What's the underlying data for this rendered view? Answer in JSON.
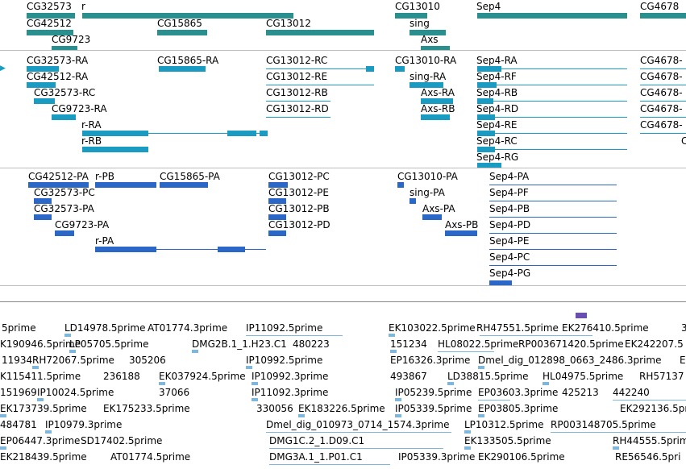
{
  "gene_track": {
    "labels": [
      "CG32573",
      "r",
      "CG13010",
      "Sep4",
      "CG4678",
      "CG42512",
      "CG15865",
      "CG13012",
      "sing",
      "CG9723",
      "Axs"
    ]
  },
  "transcript_track": {
    "labels": [
      "CG32573-RA",
      "CG15865-RA",
      "CG13012-RC",
      "CG13010-RA",
      "Sep4-RA",
      "CG4678-",
      "CG42512-RA",
      "CG13012-RE",
      "sing-RA",
      "Sep4-RF",
      "CG4678-",
      "CG32573-RC",
      "CG13012-RB",
      "Axs-RA",
      "Sep4-RB",
      "CG4678-",
      "CG9723-RA",
      "CG13012-RD",
      "Axs-RB",
      "Sep4-RD",
      "CG4678-",
      "r-RA",
      "Sep4-RE",
      "CG4678-",
      "r-RB",
      "Sep4-RC",
      "C",
      "Sep4-RG"
    ]
  },
  "protein_track": {
    "labels": [
      "CG42512-PA",
      "r-PB",
      "CG15865-PA",
      "CG13012-PC",
      "CG13010-PA",
      "Sep4-PA",
      "CG32573-PC",
      "CG13012-PE",
      "sing-PA",
      "Sep4-PF",
      "CG32573-PA",
      "CG13012-PB",
      "Axs-PA",
      "Sep4-PB",
      "CG9723-PA",
      "CG13012-PD",
      "Axs-PB",
      "Sep4-PD",
      "r-PA",
      "Sep4-PE",
      "Sep4-PC",
      "Sep4-PG"
    ]
  },
  "est_track": {
    "labels": [
      "5prime",
      "LD14978.5prime",
      "AT01774.3prime",
      "IP11092.5prime",
      "EK103022.5prime",
      "RH47551.5prime",
      "EK276410.5prime",
      "3",
      "K190946.5prime",
      "LP05705.5prime",
      "DMG2B.1_1.H23.C1",
      "480223",
      "151234",
      "HL08022.5prime",
      "RP003671420.5prime",
      "EK242207.5",
      "11934",
      "RH72067.5prime",
      "305206",
      "IP10992.5prime",
      "EP16326.3prime",
      "Dmel_dig_012898_0663_2486.3prime",
      "E",
      "K115411.5prime",
      "236188",
      "EK037924.5prime",
      "IP10992.3prime",
      "493867",
      "LD38815.5prime",
      "HL04975.5prime",
      "RH57137",
      "151969",
      "IP10024.5prime",
      "37066",
      "IP11092.3prime",
      "IP05239.5prime",
      "EP03603.3prime",
      "425213",
      "442240",
      "EK173739.5prime",
      "EK175233.5prime",
      "330056",
      "EK183226.5prime",
      "IP05339.5prime",
      "EP03805.3prime",
      "EK292136.5pri",
      "484781",
      "IP10979.3prime",
      "Dmel_dig_010973_0714_1574.3prime",
      "LP10312.5prime",
      "RP003148705.5prime",
      "EP06447.3prime",
      "SD17402.5prime",
      "DMG1C.2_1.D09.C1",
      "EK133505.5prime",
      "RH44555.5prime",
      "EK218439.5prime",
      "AT01774.5prime",
      "DMG3A.1_1.P01.C1",
      "IP05339.3prime",
      "EK290106.5prime",
      "RE56546.5pri"
    ]
  }
}
